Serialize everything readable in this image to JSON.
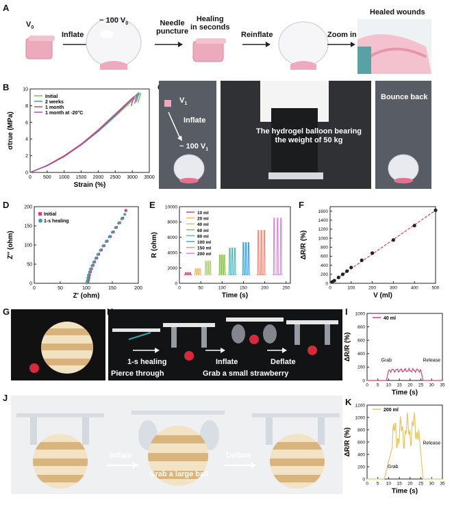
{
  "panels": {
    "A": "A",
    "B": "B",
    "C": "C",
    "D": "D",
    "E": "E",
    "F": "F",
    "G": "G",
    "H": "H",
    "I": "I",
    "J": "J",
    "K": "K"
  },
  "panelA": {
    "v0": "V",
    "v0_sub": "0",
    "inflate": "Inflate",
    "approx100": "~ 100 V",
    "approx100_sub": "0",
    "needle": "Needle\npuncture",
    "healing": "Healing\nin seconds",
    "reinflate": "Reinflate",
    "zoom": "Zoom in",
    "healed": "Healed wounds"
  },
  "panelC": {
    "v1": "V",
    "v1_sub": "1",
    "inflate": "Inflate",
    "approx100": "~ 100 V",
    "approx100_sub": "1",
    "bearing": "The hydrogel balloon bearing\nthe weight of 50 kg",
    "bounce": "Bounce back"
  },
  "panelH": {
    "healing": "1-s healing",
    "inflate": "Inflate",
    "deflate": "Deflate",
    "pierce": "Pierce through",
    "grab": "Grab a small strawberry"
  },
  "panelJ": {
    "inflate": "Inflate",
    "deflate": "Deflate",
    "grab": "Grab a large ball"
  },
  "colors": {
    "pink": "#e5a7b7",
    "arrow": "#222"
  },
  "chart_data": [
    {
      "id": "B",
      "type": "line",
      "xlabel": "Strain (%)",
      "ylabel": "σtrue (MPa)",
      "xlim": [
        0,
        3500
      ],
      "ylim": [
        0,
        10
      ],
      "xticks": [
        0,
        500,
        1000,
        1500,
        2000,
        2500,
        3000,
        3500
      ],
      "yticks": [
        0,
        2,
        4,
        6,
        8,
        10
      ],
      "legend": "top-left",
      "series": [
        {
          "name": "Initial",
          "color": "#7bbf5a",
          "x": [
            0,
            500,
            1000,
            1500,
            2000,
            2500,
            3000,
            3250
          ],
          "y": [
            0,
            0.8,
            1.9,
            3.3,
            4.9,
            6.7,
            8.6,
            9.5
          ]
        },
        {
          "name": "2 weeks",
          "color": "#3aa3a8",
          "x": [
            0,
            500,
            1000,
            1500,
            2000,
            2500,
            3000,
            3200
          ],
          "y": [
            0,
            0.8,
            1.9,
            3.3,
            4.9,
            6.8,
            8.8,
            9.6
          ]
        },
        {
          "name": "1 month",
          "color": "#d4436f",
          "x": [
            0,
            500,
            1000,
            1500,
            2000,
            2500,
            3000,
            3050
          ],
          "y": [
            0,
            0.85,
            2.0,
            3.4,
            5.1,
            7.0,
            8.9,
            9.1
          ]
        },
        {
          "name": "1 month at -20°C",
          "color": "#9b5ba5",
          "x": [
            0,
            500,
            1000,
            1500,
            2000,
            2500,
            3000,
            3150
          ],
          "y": [
            0,
            0.8,
            1.9,
            3.3,
            5.0,
            6.9,
            8.8,
            9.4
          ]
        }
      ]
    },
    {
      "id": "D",
      "type": "scatter",
      "xlabel": "Z' (ohm)",
      "ylabel": "Z'' (ohm)",
      "xlim": [
        0,
        200
      ],
      "ylim": [
        0,
        200
      ],
      "xticks": [
        0,
        50,
        100,
        150,
        200
      ],
      "yticks": [
        0,
        50,
        100,
        150,
        200
      ],
      "legend": "top-left",
      "series": [
        {
          "name": "Initial",
          "color": "#d4436f",
          "x": [
            103,
            104,
            105,
            106,
            108,
            110,
            113,
            116,
            120,
            124,
            129,
            134,
            140,
            146,
            152,
            158,
            164,
            170,
            176
          ],
          "y": [
            2,
            8,
            15,
            22,
            30,
            38,
            47,
            56,
            66,
            76,
            87,
            98,
            110,
            122,
            134,
            146,
            158,
            170,
            190
          ]
        },
        {
          "name": "1-s healing",
          "color": "#3aa3a8",
          "x": [
            101,
            102,
            103,
            104,
            106,
            108,
            111,
            114,
            118,
            122,
            127,
            132,
            138,
            144,
            150,
            156,
            162,
            168,
            174
          ],
          "y": [
            1,
            7,
            14,
            21,
            29,
            37,
            46,
            55,
            65,
            75,
            86,
            97,
            109,
            121,
            133,
            145,
            157,
            168,
            180
          ]
        }
      ]
    },
    {
      "id": "E",
      "type": "line",
      "xlabel": "Time (s)",
      "ylabel": "R (ohm)",
      "xlim": [
        0,
        260
      ],
      "ylim": [
        0,
        10000
      ],
      "xticks": [
        0,
        50,
        100,
        150,
        200,
        250
      ],
      "yticks": [
        0,
        2000,
        4000,
        6000,
        8000,
        10000
      ],
      "legend": "left",
      "series": [
        {
          "name": "10 ml",
          "color": "#d4436f",
          "peaks": [
            15,
            20,
            25
          ],
          "height": 1400
        },
        {
          "name": "20 ml",
          "color": "#f0b86b",
          "peaks": [
            38,
            43,
            48
          ],
          "height": 1900
        },
        {
          "name": "40 ml",
          "color": "#b2cf7a",
          "peaks": [
            62,
            67,
            72
          ],
          "height": 2900
        },
        {
          "name": "60 ml",
          "color": "#8bc34a",
          "peaks": [
            95,
            100,
            105
          ],
          "height": 3700
        },
        {
          "name": "80 ml",
          "color": "#5fb3b3",
          "peaks": [
            118,
            124,
            130
          ],
          "height": 4600
        },
        {
          "name": "100 ml",
          "color": "#4aa0d9",
          "peaks": [
            150,
            156,
            162
          ],
          "height": 5300
        },
        {
          "name": "150 ml",
          "color": "#f08a7a",
          "peaks": [
            185,
            192,
            199
          ],
          "height": 6900
        },
        {
          "name": "200 ml",
          "color": "#d98ad9",
          "peaks": [
            222,
            230,
            238
          ],
          "height": 8500
        }
      ],
      "baseline": 1100
    },
    {
      "id": "F",
      "type": "scatter",
      "xlabel": "V (ml)",
      "ylabel": "ΔR/R (%)",
      "xlim": [
        0,
        500
      ],
      "ylim": [
        0,
        1700
      ],
      "xticks": [
        0,
        100,
        200,
        300,
        400,
        500
      ],
      "yticks": [
        0,
        200,
        400,
        600,
        800,
        1000,
        1200,
        1400,
        1600
      ],
      "series": [
        {
          "name": "",
          "color": "#222",
          "x": [
            10,
            20,
            40,
            60,
            80,
            100,
            150,
            200,
            300,
            400,
            500
          ],
          "y": [
            30,
            60,
            130,
            200,
            270,
            350,
            510,
            670,
            960,
            1280,
            1620
          ]
        }
      ],
      "fit_color": "#e04050"
    },
    {
      "id": "I",
      "type": "line",
      "xlabel": "Time (s)",
      "ylabel": "ΔR/R (%)",
      "xlim": [
        0,
        35
      ],
      "ylim": [
        0,
        1000
      ],
      "xticks": [
        0,
        5,
        10,
        15,
        20,
        25,
        30,
        35
      ],
      "yticks": [
        0,
        200,
        400,
        600,
        800,
        1000
      ],
      "legend": "top-left",
      "annotations": [
        "Grab",
        "Release"
      ],
      "series": [
        {
          "name": "40 ml",
          "color": "#d4436f"
        }
      ]
    },
    {
      "id": "K",
      "type": "line",
      "xlabel": "Time (s)",
      "ylabel": "ΔR/R (%)",
      "xlim": [
        0,
        35
      ],
      "ylim": [
        0,
        1200
      ],
      "xticks": [
        0,
        5,
        10,
        15,
        20,
        25,
        30,
        35
      ],
      "yticks": [
        0,
        200,
        400,
        600,
        800,
        1000,
        1200
      ],
      "legend": "top-left",
      "annotations": [
        "Grab",
        "Release"
      ],
      "series": [
        {
          "name": "200 ml",
          "color": "#e6c45a"
        }
      ]
    }
  ]
}
